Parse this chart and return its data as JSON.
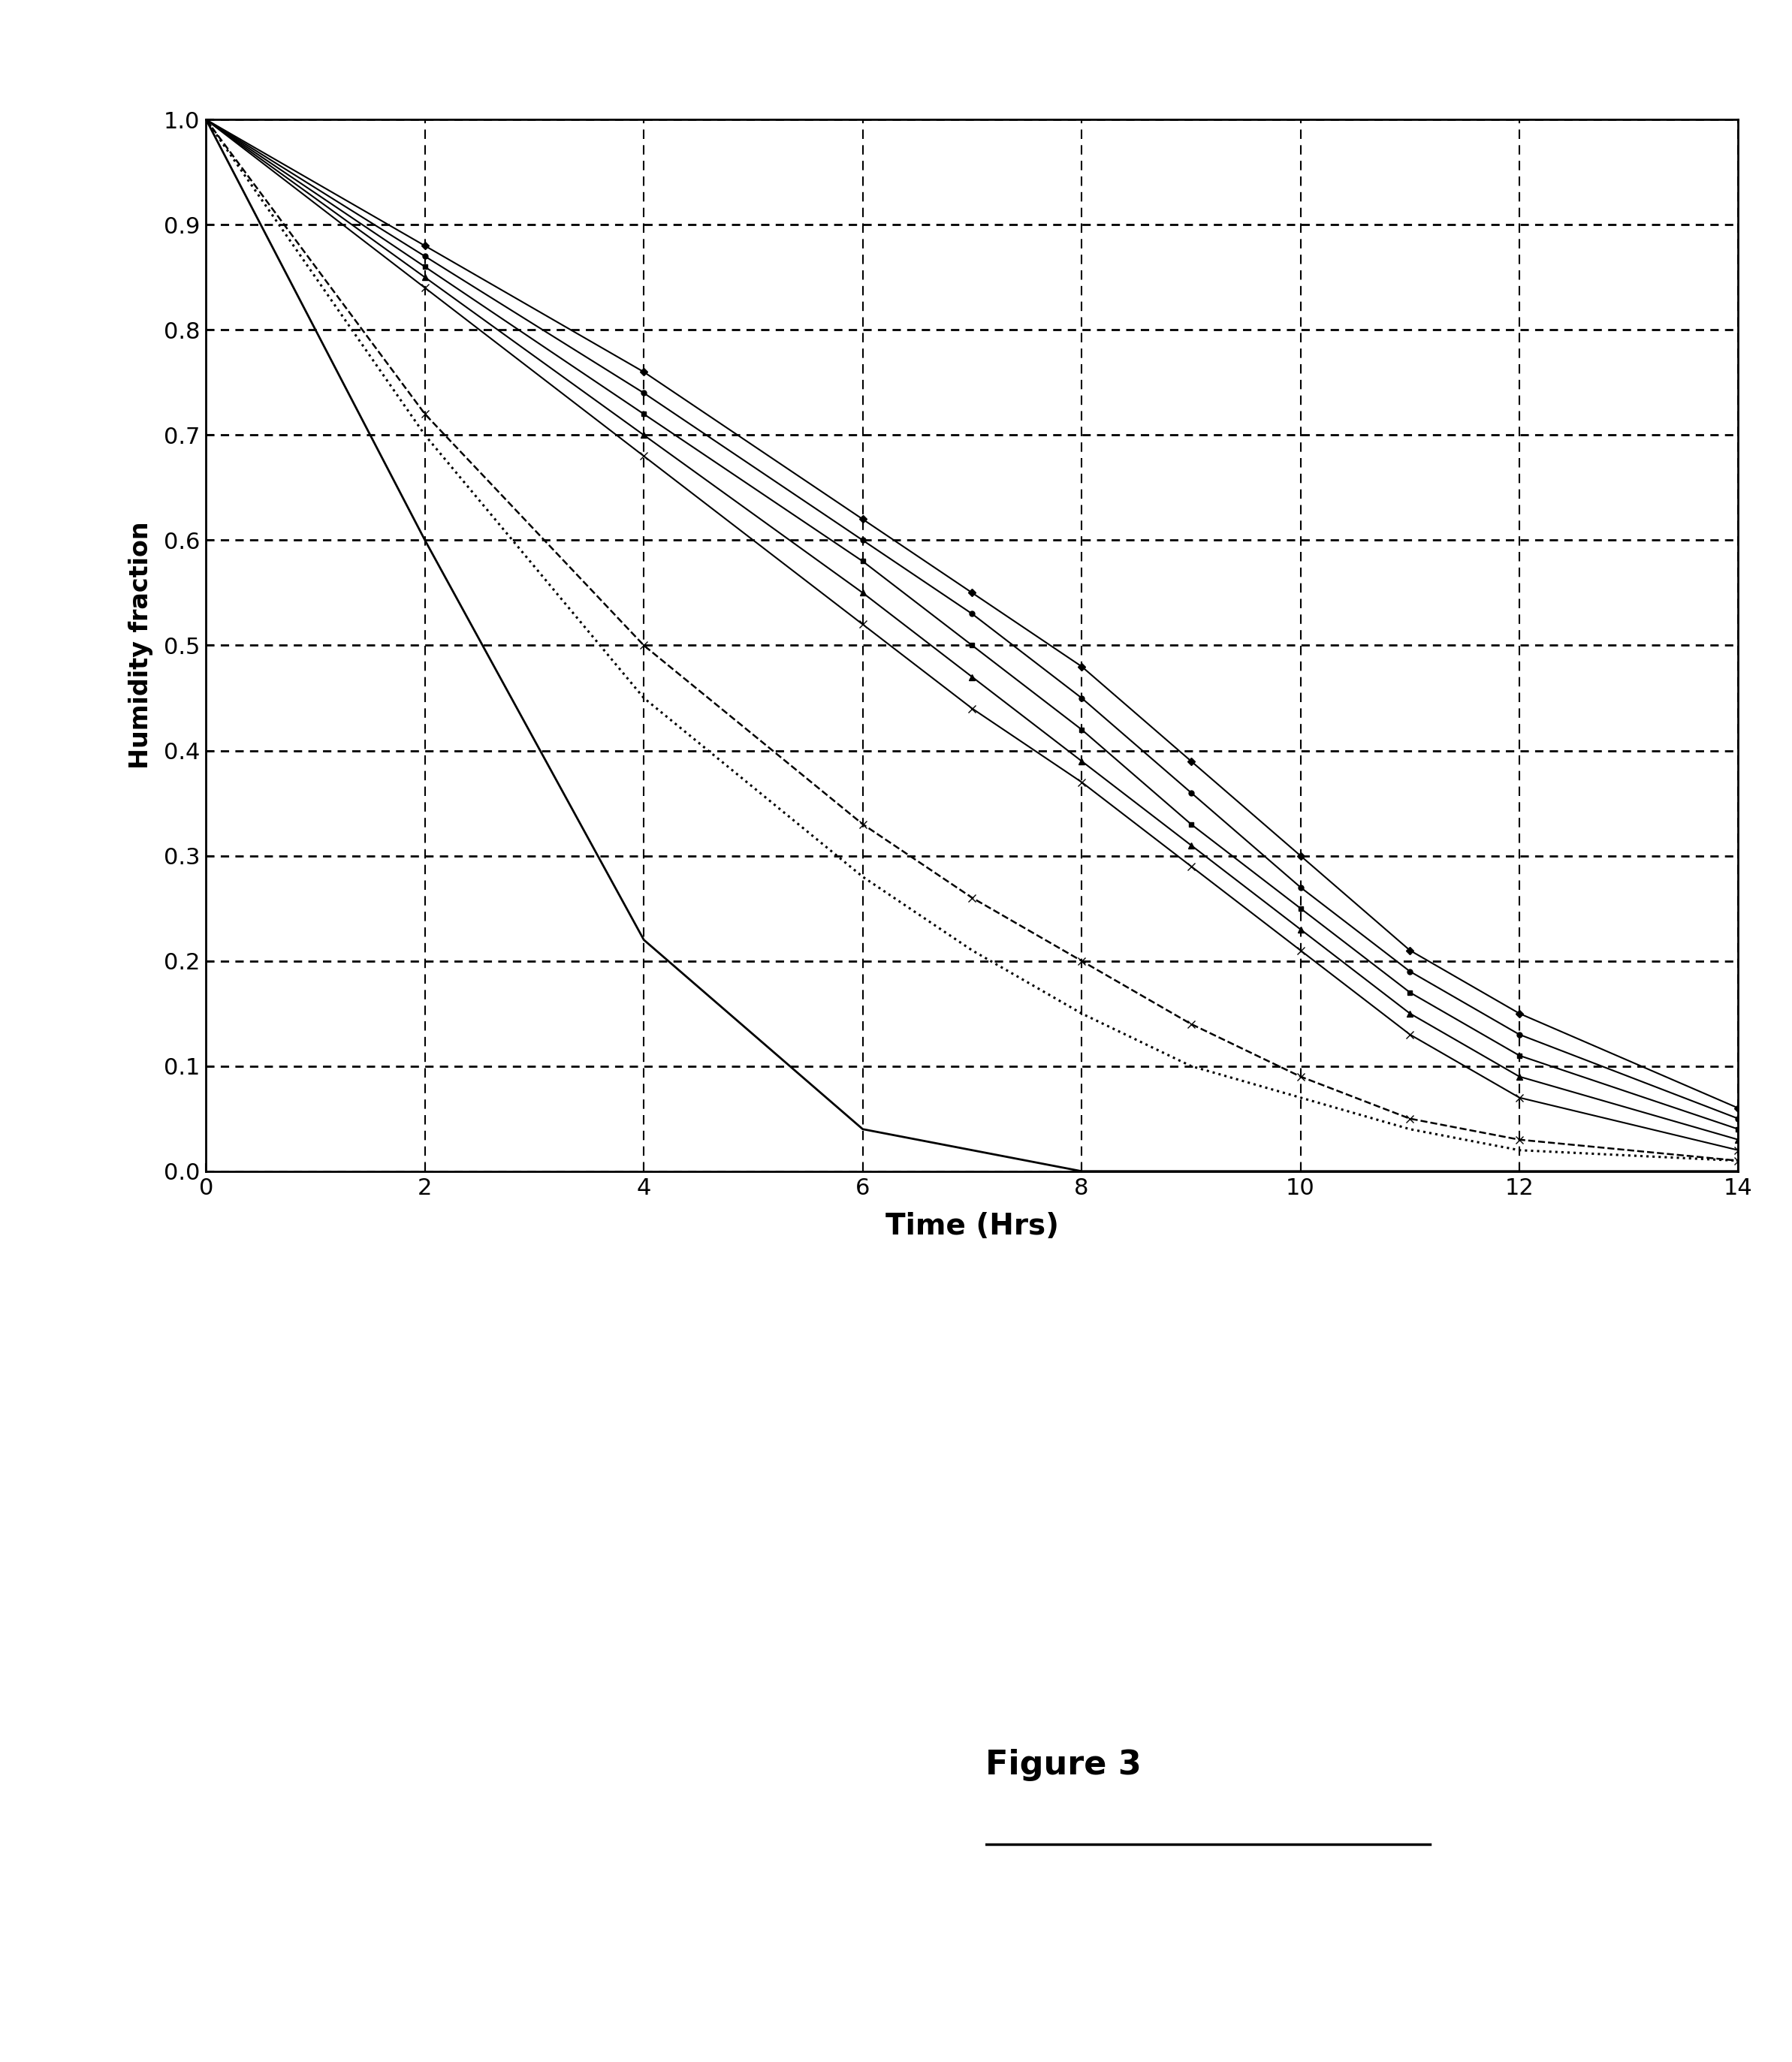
{
  "title": "",
  "xlabel": "Time (Hrs)",
  "ylabel": "Humidity fraction",
  "xlim": [
    0,
    14
  ],
  "ylim": [
    0,
    1
  ],
  "xticks": [
    0,
    2,
    4,
    6,
    8,
    10,
    12,
    14
  ],
  "yticks": [
    0,
    0.1,
    0.2,
    0.3,
    0.4,
    0.5,
    0.6,
    0.7,
    0.8,
    0.9,
    1
  ],
  "figure_caption": "Figure 3",
  "series": [
    {
      "name": "solid_fastest",
      "x": [
        0,
        2,
        4,
        6,
        8,
        10,
        12,
        14
      ],
      "y": [
        1.0,
        0.6,
        0.22,
        0.04,
        0.0,
        0.0,
        0.0,
        0.0
      ],
      "linestyle": "-",
      "marker": "None",
      "linewidth": 2.0,
      "color": "#000000",
      "markersize": 0
    },
    {
      "name": "dotted_fast1",
      "x": [
        0,
        2,
        4,
        6,
        7,
        8,
        9,
        10,
        11,
        12,
        14
      ],
      "y": [
        1.0,
        0.7,
        0.45,
        0.28,
        0.21,
        0.15,
        0.1,
        0.07,
        0.04,
        0.02,
        0.01
      ],
      "linestyle": ":",
      "marker": "None",
      "linewidth": 2.2,
      "color": "#000000",
      "markersize": 0
    },
    {
      "name": "dashed_fast2",
      "x": [
        0,
        2,
        4,
        6,
        7,
        8,
        9,
        10,
        11,
        12,
        14
      ],
      "y": [
        1.0,
        0.72,
        0.5,
        0.33,
        0.26,
        0.2,
        0.14,
        0.09,
        0.05,
        0.03,
        0.01
      ],
      "linestyle": "--",
      "marker": "x",
      "linewidth": 1.8,
      "color": "#000000",
      "markersize": 7
    },
    {
      "name": "solid_curve_x",
      "x": [
        0,
        2,
        4,
        6,
        7,
        8,
        9,
        10,
        11,
        12,
        14
      ],
      "y": [
        1.0,
        0.84,
        0.68,
        0.52,
        0.44,
        0.37,
        0.29,
        0.21,
        0.13,
        0.07,
        0.02
      ],
      "linestyle": "-",
      "marker": "x",
      "linewidth": 1.5,
      "color": "#000000",
      "markersize": 7
    },
    {
      "name": "solid_curve_tri",
      "x": [
        0,
        2,
        4,
        6,
        7,
        8,
        9,
        10,
        11,
        12,
        14
      ],
      "y": [
        1.0,
        0.85,
        0.7,
        0.55,
        0.47,
        0.39,
        0.31,
        0.23,
        0.15,
        0.09,
        0.03
      ],
      "linestyle": "-",
      "marker": "^",
      "linewidth": 1.5,
      "color": "#000000",
      "markersize": 6
    },
    {
      "name": "solid_curve_sq",
      "x": [
        0,
        2,
        4,
        6,
        7,
        8,
        9,
        10,
        11,
        12,
        14
      ],
      "y": [
        1.0,
        0.86,
        0.72,
        0.58,
        0.5,
        0.42,
        0.33,
        0.25,
        0.17,
        0.11,
        0.04
      ],
      "linestyle": "-",
      "marker": "s",
      "linewidth": 1.5,
      "color": "#000000",
      "markersize": 5
    },
    {
      "name": "solid_curve_circ",
      "x": [
        0,
        2,
        4,
        6,
        7,
        8,
        9,
        10,
        11,
        12,
        14
      ],
      "y": [
        1.0,
        0.87,
        0.74,
        0.6,
        0.53,
        0.45,
        0.36,
        0.27,
        0.19,
        0.13,
        0.05
      ],
      "linestyle": "-",
      "marker": "o",
      "linewidth": 1.5,
      "color": "#000000",
      "markersize": 5
    },
    {
      "name": "solid_curve_diam",
      "x": [
        0,
        2,
        4,
        6,
        7,
        8,
        9,
        10,
        11,
        12,
        14
      ],
      "y": [
        1.0,
        0.88,
        0.76,
        0.62,
        0.55,
        0.48,
        0.39,
        0.3,
        0.21,
        0.15,
        0.06
      ],
      "linestyle": "-",
      "marker": "D",
      "linewidth": 1.5,
      "color": "#000000",
      "markersize": 5
    }
  ],
  "background_color": "#ffffff",
  "xlabel_fontsize": 28,
  "ylabel_fontsize": 24,
  "tick_fontsize": 22,
  "caption_fontsize": 32,
  "caption_fontweight": "bold"
}
